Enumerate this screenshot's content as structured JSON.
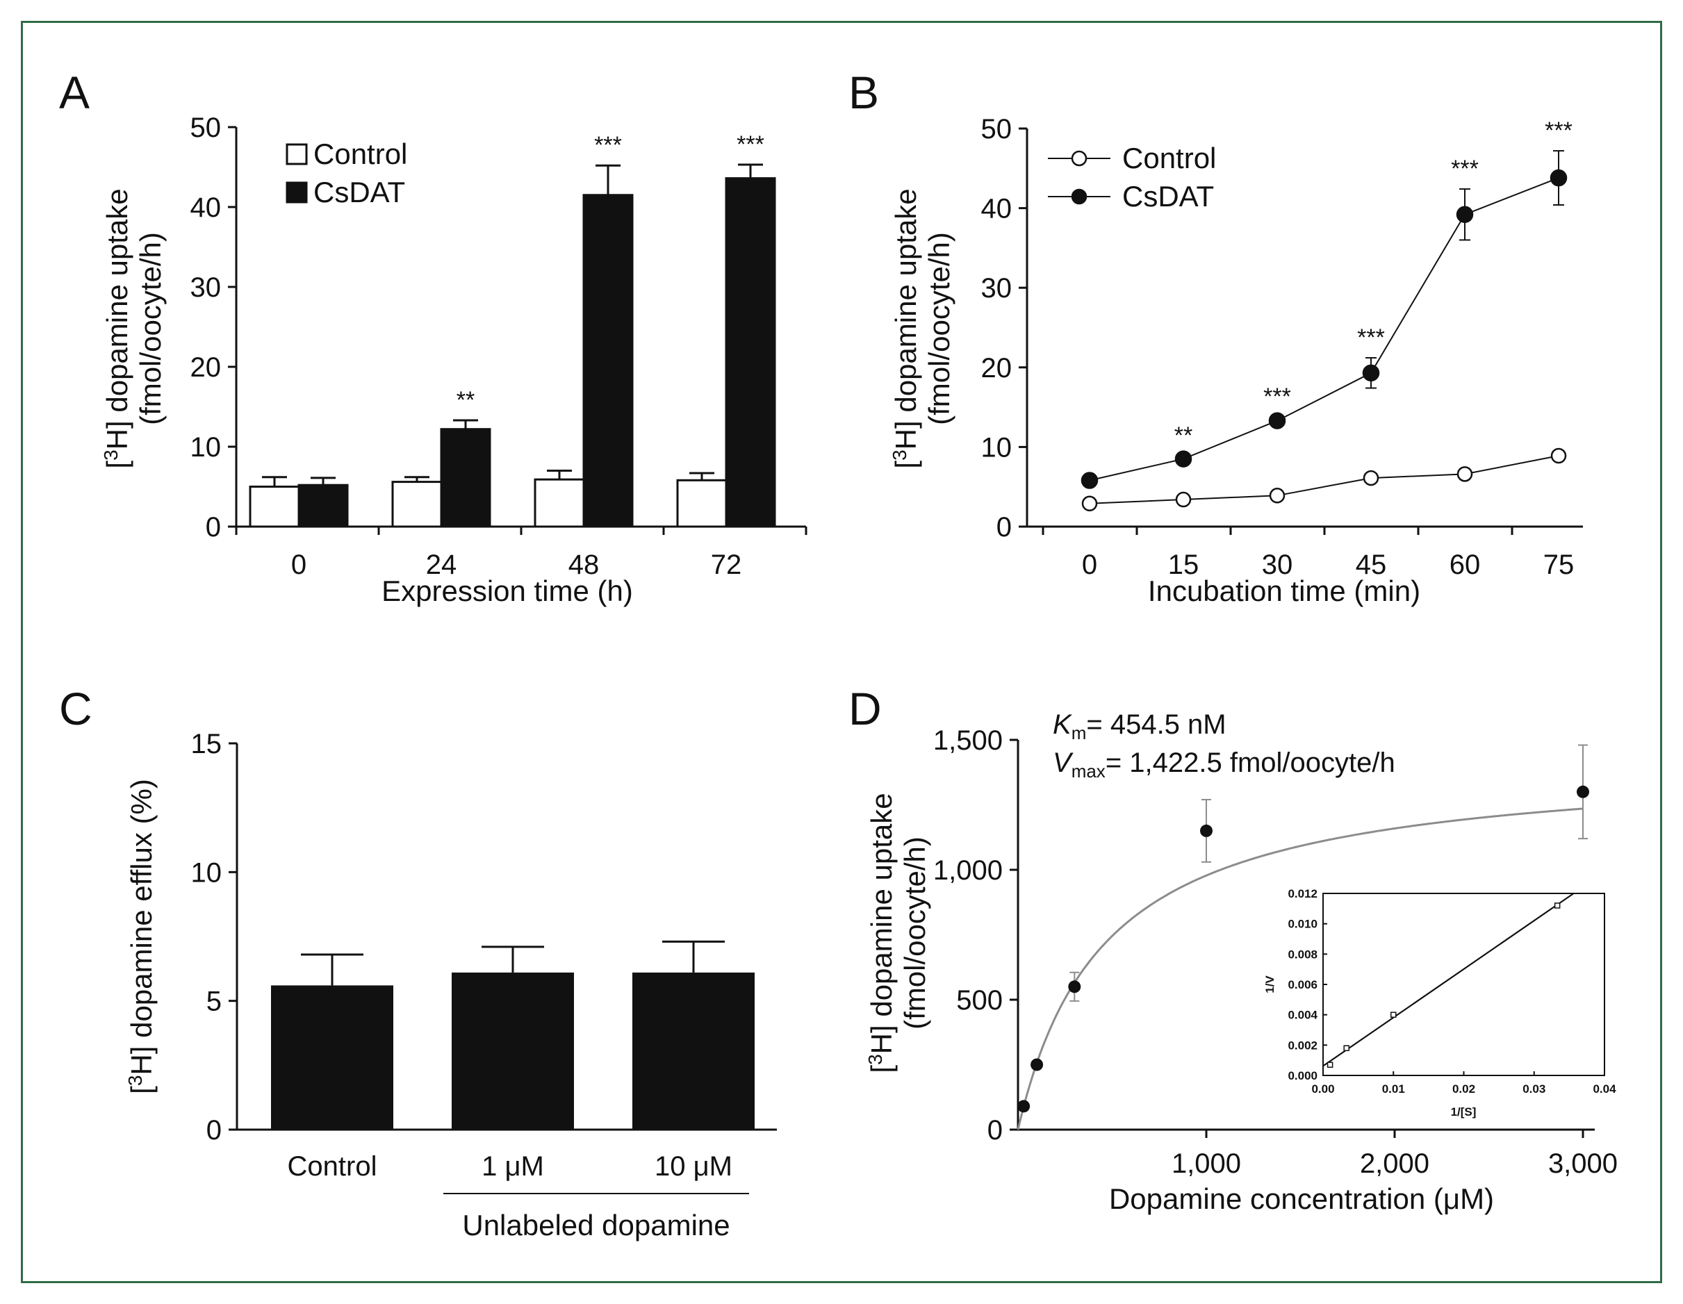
{
  "colors": {
    "frame": "#2f6b45",
    "ink": "#111111",
    "fit_curve": "#8c8c8c"
  },
  "chart_data": [
    {
      "panel": "A",
      "type": "bar",
      "categories": [
        "0",
        "24",
        "48",
        "72"
      ],
      "series": [
        {
          "name": "Control",
          "fill": "white",
          "values": [
            5.0,
            5.6,
            5.9,
            5.8
          ],
          "errors": [
            1.2,
            0.6,
            1.1,
            0.9
          ]
        },
        {
          "name": "CsDAT",
          "fill": "black",
          "values": [
            5.2,
            12.2,
            41.5,
            43.6
          ],
          "errors": [
            0.9,
            1.1,
            3.7,
            1.7
          ]
        }
      ],
      "significance": [
        "",
        "**",
        "***",
        "***"
      ],
      "xlabel": "Expression time (h)",
      "ylabel_line1": "[3H] dopamine uptake",
      "ylabel_line2": "(fmol/oocyte/h)",
      "ylim": [
        0,
        50
      ],
      "yticks": [
        "0",
        "10",
        "20",
        "30",
        "40",
        "50"
      ],
      "legend_position": "top-left"
    },
    {
      "panel": "B",
      "type": "line",
      "x": [
        "0",
        "15",
        "30",
        "45",
        "60",
        "75"
      ],
      "series": [
        {
          "name": "Control",
          "marker": "open-circle",
          "values": [
            2.9,
            3.4,
            3.9,
            6.1,
            6.6,
            8.9
          ],
          "errors": [
            0.3,
            0.3,
            0.4,
            0.5,
            0.5,
            0.4
          ]
        },
        {
          "name": "CsDAT",
          "marker": "filled-circle",
          "values": [
            5.8,
            8.5,
            13.3,
            19.3,
            39.2,
            43.8
          ],
          "errors": [
            0.3,
            0.4,
            0.5,
            1.9,
            3.2,
            3.4
          ]
        }
      ],
      "significance": [
        "",
        "**",
        "***",
        "***",
        "***",
        "***"
      ],
      "xlabel": "Incubation time (min)",
      "ylabel_line1": "[3H] dopamine uptake",
      "ylabel_line2": "(fmol/oocyte/h)",
      "ylim": [
        0,
        50
      ],
      "yticks": [
        "0",
        "10",
        "20",
        "30",
        "40",
        "50"
      ],
      "legend_position": "top-left"
    },
    {
      "panel": "C",
      "type": "bar",
      "categories": [
        "Control",
        "1 μM",
        "10 μM"
      ],
      "values": [
        5.6,
        6.1,
        6.1
      ],
      "errors": [
        1.2,
        1.0,
        1.2
      ],
      "group_label": "Unlabeled dopamine",
      "ylabel": "[3H] dopamine efflux (%)",
      "ylim": [
        0,
        15
      ],
      "yticks": [
        "0",
        "5",
        "10",
        "15"
      ]
    },
    {
      "panel": "D",
      "type": "scatter",
      "points": [
        {
          "x": 30,
          "y": 90,
          "err": 0
        },
        {
          "x": 100,
          "y": 250,
          "err": 0
        },
        {
          "x": 300,
          "y": 550,
          "err": 55
        },
        {
          "x": 1000,
          "y": 1150,
          "err": 120
        },
        {
          "x": 3000,
          "y": 1300,
          "err": 180
        }
      ],
      "fit": {
        "model": "Michaelis-Menten",
        "Km": 454.5,
        "Vmax": 1422.5
      },
      "km_label": "= 454.5 nM",
      "vmax_label": "= 1,422.5 fmol/oocyte/h",
      "xlabel": "Dopamine concentration (μM)",
      "ylabel_line1": "[3H] dopamine uptake",
      "ylabel_line2": "(fmol/oocyte/h)",
      "xlim": [
        0,
        3000
      ],
      "ylim": [
        0,
        1500
      ],
      "xticks": [
        "1,000",
        "2,000",
        "3,000"
      ],
      "yticks": [
        "0",
        "500",
        "1,000",
        "1,500"
      ],
      "inset": {
        "type": "line",
        "points": [
          {
            "x": 0.001,
            "y": 0.0007
          },
          {
            "x": 0.00333,
            "y": 0.0018
          },
          {
            "x": 0.01,
            "y": 0.004
          },
          {
            "x": 0.0333,
            "y": 0.0112
          }
        ],
        "xlabel": "1/[S]",
        "ylabel": "1/V",
        "xlim": [
          0,
          0.04
        ],
        "ylim": [
          0,
          0.012
        ],
        "xticks": [
          "0.00",
          "0.01",
          "0.02",
          "0.03",
          "0.04"
        ],
        "yticks": [
          "0.000",
          "0.002",
          "0.004",
          "0.006",
          "0.008",
          "0.010",
          "0.012"
        ]
      }
    }
  ]
}
